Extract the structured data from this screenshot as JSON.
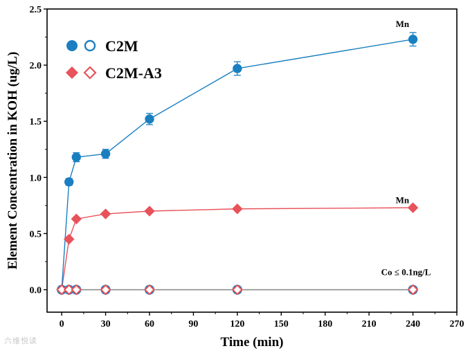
{
  "chart_data": {
    "type": "line",
    "xlabel": "Time (min)",
    "ylabel": "Element Concentration in KOH (ug/L)",
    "xlim": [
      -10,
      270
    ],
    "ylim": [
      -0.2,
      2.5
    ],
    "xticks": [
      0,
      30,
      60,
      90,
      120,
      150,
      180,
      210,
      240,
      270
    ],
    "yticks": [
      0.0,
      0.5,
      1.0,
      1.5,
      2.0,
      2.5
    ],
    "xtick_labels": [
      "0",
      "30",
      "60",
      "90",
      "120",
      "150",
      "180",
      "210",
      "240",
      "270"
    ],
    "ytick_labels": [
      "0.0",
      "0.5",
      "1.0",
      "1.5",
      "2.0",
      "2.5"
    ],
    "legend_position": "top-left",
    "series": [
      {
        "name": "C2M",
        "element": "Mn",
        "color": "#1a7fc1",
        "marker": "circle",
        "filled": true,
        "x": [
          0,
          5,
          10,
          30,
          60,
          120,
          240
        ],
        "y": [
          0.0,
          0.96,
          1.18,
          1.21,
          1.52,
          1.97,
          2.23
        ],
        "err": [
          0,
          0.03,
          0.04,
          0.04,
          0.05,
          0.06,
          0.06
        ]
      },
      {
        "name": "C2M-A3",
        "element": "Mn",
        "color": "#e8525a",
        "marker": "diamond",
        "filled": true,
        "x": [
          0,
          5,
          10,
          30,
          60,
          120,
          240
        ],
        "y": [
          0.0,
          0.45,
          0.63,
          0.675,
          0.7,
          0.72,
          0.73
        ],
        "err": [
          0,
          0.01,
          0.01,
          0.01,
          0.01,
          0.01,
          0.01
        ]
      },
      {
        "name": "C2M",
        "element": "Co",
        "color": "#1a7fc1",
        "marker": "circle",
        "filled": false,
        "x": [
          0,
          5,
          10,
          30,
          60,
          120,
          240
        ],
        "y": [
          0,
          0,
          0,
          0,
          0,
          0,
          0
        ]
      },
      {
        "name": "C2M-A3",
        "element": "Co",
        "color": "#e8525a",
        "marker": "diamond",
        "filled": false,
        "x": [
          0,
          5,
          10,
          30,
          60,
          120,
          240
        ],
        "y": [
          0,
          0,
          0,
          0,
          0,
          0,
          0
        ]
      }
    ],
    "legend": [
      {
        "label": "C2M",
        "color": "#1a7fc1",
        "marker": "circle"
      },
      {
        "label": "C2M-A3",
        "color": "#e8525a",
        "marker": "diamond"
      }
    ],
    "annotations": [
      {
        "text": "Mn",
        "x": 232,
        "y": 2.34
      },
      {
        "text": "Mn",
        "x": 232,
        "y": 0.77
      },
      {
        "text": "Co ≤ 0.1ng/L",
        "x": 240,
        "y": 0.13
      }
    ]
  },
  "watermark": "六维悦读"
}
